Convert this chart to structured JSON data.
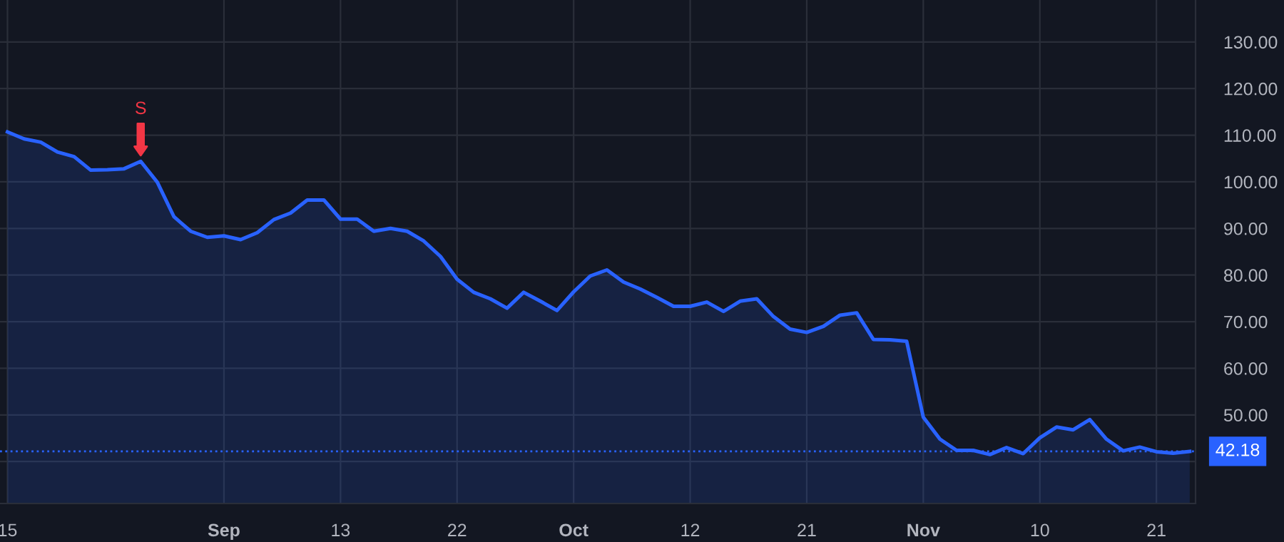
{
  "chart_data": {
    "type": "area",
    "categories": [
      "15",
      null,
      null,
      null,
      null,
      null,
      null,
      null,
      null,
      null,
      null,
      null,
      null,
      "Sep",
      null,
      null,
      null,
      null,
      null,
      null,
      "13",
      null,
      null,
      null,
      null,
      null,
      null,
      "22",
      null,
      null,
      null,
      null,
      null,
      null,
      "Oct",
      null,
      null,
      null,
      null,
      null,
      null,
      "12",
      null,
      null,
      null,
      null,
      null,
      null,
      "21",
      null,
      null,
      null,
      null,
      null,
      null,
      "Nov",
      null,
      null,
      null,
      null,
      null,
      null,
      "10",
      null,
      null,
      null,
      null,
      null,
      null,
      "21",
      null,
      null
    ],
    "series": [
      {
        "color": "#2962ff",
        "values": [
          110.7,
          109.2,
          108.5,
          106.4,
          105.4,
          102.5,
          102.6,
          102.8,
          104.4,
          99.9,
          92.5,
          89.4,
          88.1,
          88.4,
          87.6,
          89.1,
          91.9,
          93.3,
          96.1,
          96.1,
          92.0,
          92.0,
          89.4,
          90.0,
          89.4,
          87.3,
          84.0,
          79.1,
          76.3,
          74.9,
          72.9,
          76.3,
          74.4,
          72.4,
          76.4,
          79.8,
          81.1,
          78.5,
          77.0,
          75.2,
          73.3,
          73.3,
          74.2,
          72.2,
          74.4,
          74.9,
          71.1,
          68.4,
          67.7,
          69.0,
          71.4,
          71.9,
          66.2,
          66.1,
          65.8,
          49.5,
          44.8,
          42.4,
          42.4,
          41.5,
          43.0,
          41.7,
          45.1,
          47.4,
          46.8,
          49.0,
          44.8,
          42.3,
          43.1,
          42.1,
          41.8,
          42.18
        ]
      }
    ],
    "ylim": [
      31,
      139
    ],
    "yticks": [
      {
        "value": 40,
        "label": null
      },
      {
        "value": 50,
        "label": "50.00"
      },
      {
        "value": 60,
        "label": "60.00"
      },
      {
        "value": 70,
        "label": "70.00"
      },
      {
        "value": 80,
        "label": "80.00"
      },
      {
        "value": 90,
        "label": "90.00"
      },
      {
        "value": 100,
        "label": "100.00"
      },
      {
        "value": 110,
        "label": "110.00"
      },
      {
        "value": 120,
        "label": "120.00"
      },
      {
        "value": 130,
        "label": "130.00"
      }
    ],
    "grid": true,
    "ref_lines": [
      {
        "axis": "y",
        "value": 42.18,
        "label": "42.18",
        "color": "#2962ff",
        "line_style": "dotted"
      }
    ],
    "annotations": [
      {
        "text": "S",
        "y": 104.4
      }
    ]
  }
}
